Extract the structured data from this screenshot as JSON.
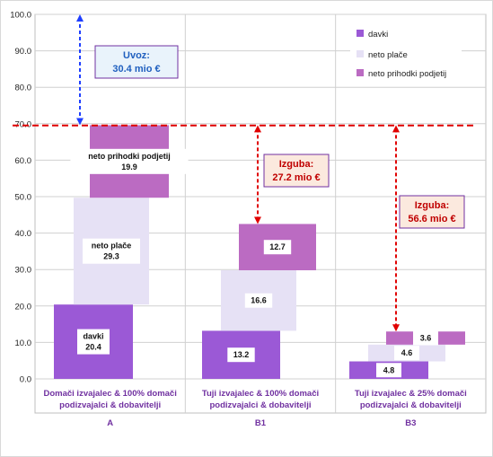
{
  "colors": {
    "davki": "#9b59d6",
    "neto_place": "#e6e1f5",
    "neto_prihodki": "#bb6bc2",
    "grid": "#d0d0d0",
    "plot_border": "#bfbfbf",
    "red_line": "#e00000",
    "blue_arrow": "#1f3fff",
    "uvoz_box_bg": "#e9f3fb",
    "uvoz_box_border": "#7030a0",
    "uvoz_text": "#1f5fbf",
    "izguba_box_bg": "#fbe9de",
    "izguba_box_border": "#7030a0",
    "izguba_text": "#c00000",
    "category_text": "#7030a0"
  },
  "chart_data": {
    "type": "bar",
    "subtype": "stacked-floating",
    "y_ticks": [
      "0.0",
      "10.0",
      "20.0",
      "30.0",
      "40.0",
      "50.0",
      "60.0",
      "70.0",
      "80.0",
      "90.0",
      "100.0"
    ],
    "ylim": [
      0,
      100
    ],
    "grid": true,
    "legend_position": "top-right",
    "legend": [
      "davki",
      "neto plače",
      "neto prihodki podjetij"
    ],
    "reference_line": 70,
    "categories": [
      {
        "label_line1": "Domači izvajalec & 100% domači",
        "label_line2": "podizvajalci & dobavitelji",
        "code": "A",
        "segments": [
          {
            "series": "davki",
            "start": 0,
            "value": 20.4,
            "label_name": "davki",
            "label_value": "20.4"
          },
          {
            "series": "neto plače",
            "start": 20.4,
            "value": 29.3,
            "label_name": "neto plače",
            "label_value": "29.3"
          },
          {
            "series": "neto prihodki podjetij",
            "start": 49.7,
            "value": 19.9,
            "label_name": "neto prihodki podjetij",
            "label_value": "19.9"
          }
        ]
      },
      {
        "label_line1": "Tuji izvajalec & 100% domači",
        "label_line2": "podizvajalci & dobavitelji",
        "code": "B1",
        "segments": [
          {
            "series": "davki",
            "start": 0,
            "value": 13.2,
            "label_value": "13.2"
          },
          {
            "series": "neto plače",
            "start": 13.2,
            "value": 16.6,
            "label_value": "16.6"
          },
          {
            "series": "neto prihodki podjetij",
            "start": 29.8,
            "value": 12.7,
            "label_value": "12.7"
          }
        ]
      },
      {
        "label_line1": "Tuji izvajalec & 25% domači",
        "label_line2": "podizvajalci & dobavitelji",
        "code": "B3",
        "segments": [
          {
            "series": "davki",
            "start": 0,
            "value": 4.8,
            "label_value": "4.8"
          },
          {
            "series": "neto plače",
            "start": 4.8,
            "value": 4.6,
            "label_value": "4.6"
          },
          {
            "series": "neto prihodki podjetij",
            "start": 9.4,
            "value": 3.6,
            "label_value": "3.6"
          }
        ]
      }
    ],
    "annotations": {
      "uvoz": {
        "title": "Uvoz:",
        "value": "30.4 mio €",
        "from": 69.6,
        "to": 100
      },
      "izguba_b1": {
        "title": "Izguba:",
        "value": "27.2 mio €",
        "from": 42.5,
        "to": 69.6
      },
      "izguba_b3": {
        "title": "Izguba:",
        "value": "56.6 mio €",
        "from": 13.0,
        "to": 69.6
      }
    }
  }
}
